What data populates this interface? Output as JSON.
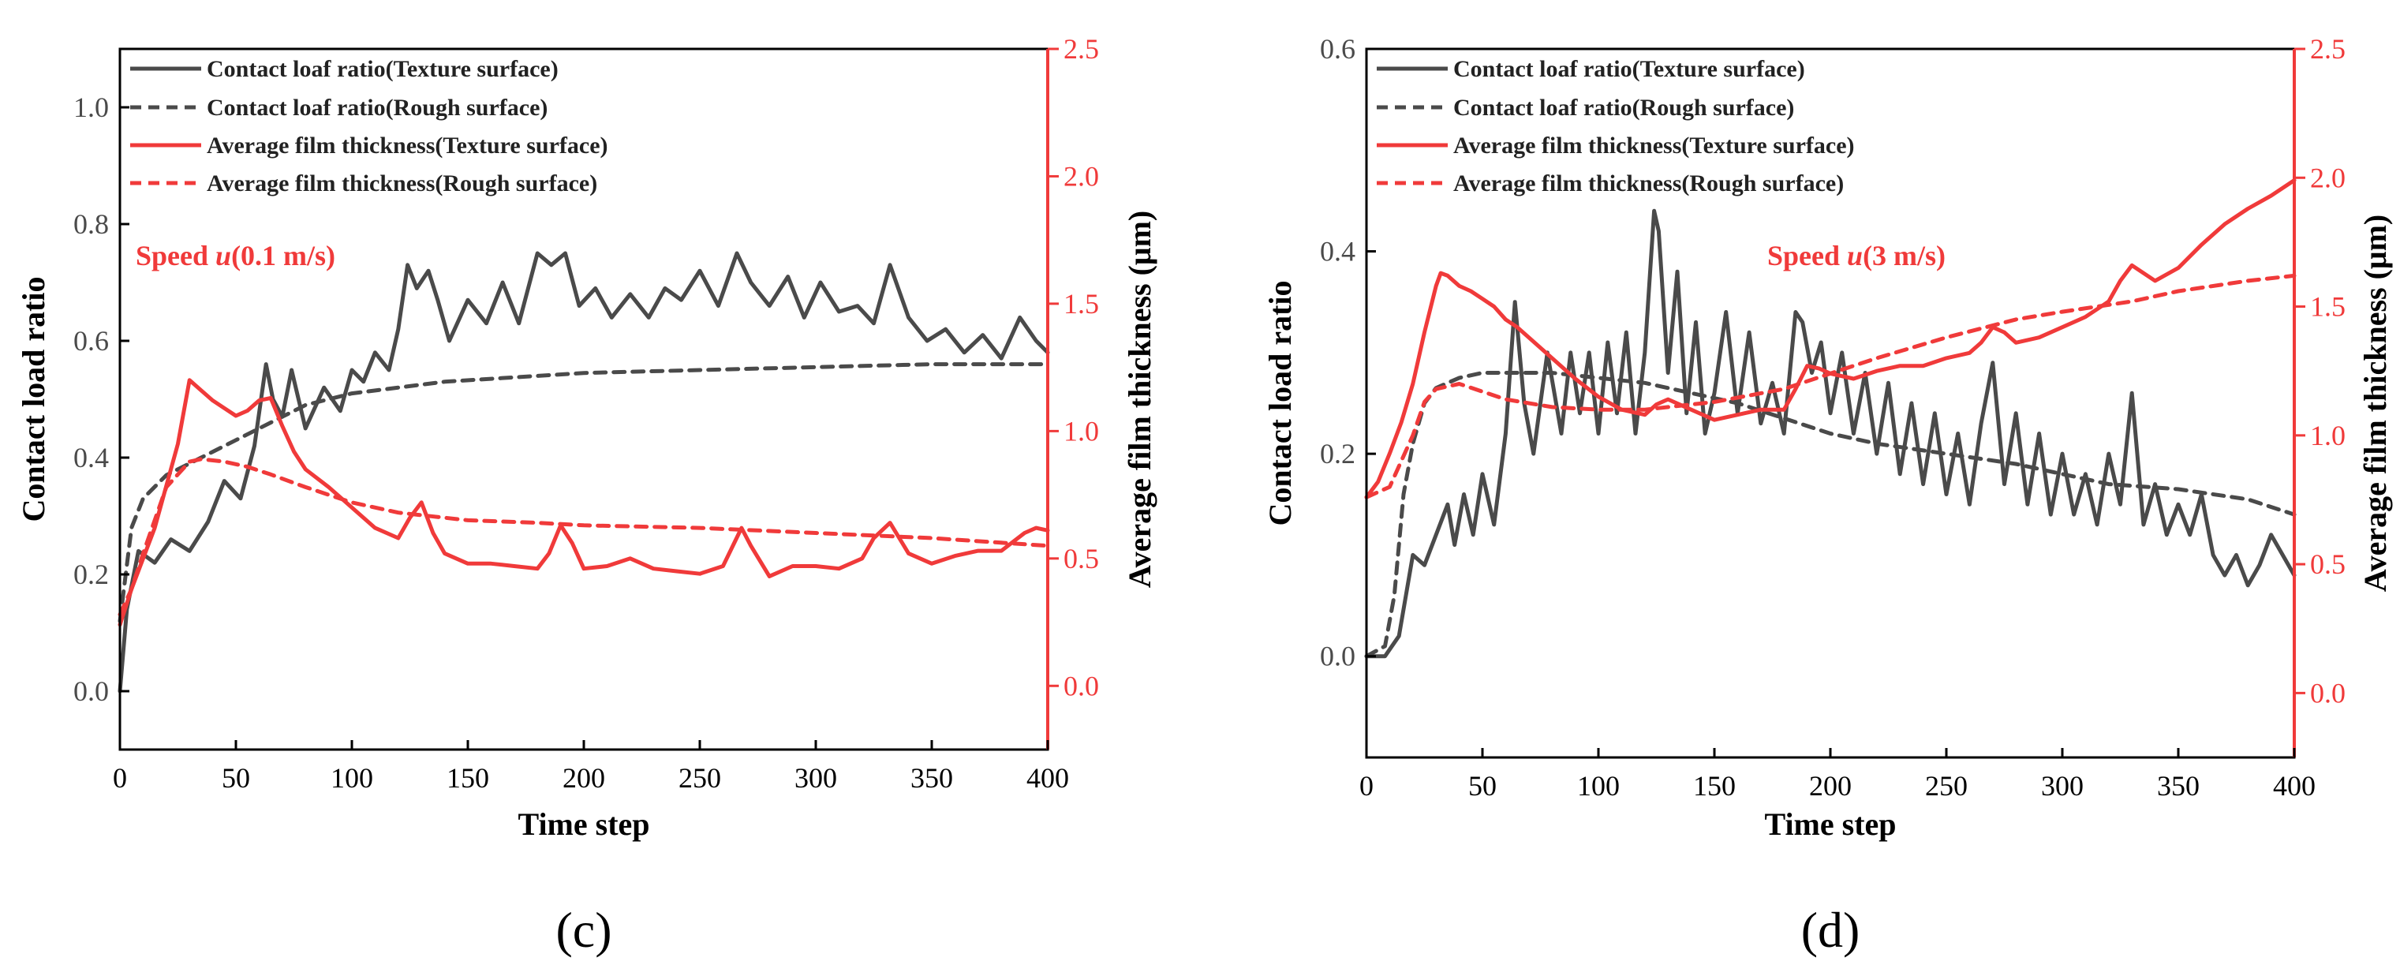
{
  "colors": {
    "gray": "#4a4a4a",
    "red": "#f03a3a",
    "axis": "#000000"
  },
  "panels": [
    {
      "label": "(c)",
      "annotation": "Speed u(0.1 m/s)",
      "annotation_parts": [
        "Speed ",
        "u",
        "(0.1 m/s)"
      ],
      "xlabel": "Time step",
      "ylabel_left": "Contact load ratio",
      "ylabel_right": "Average film thickness (μm)",
      "legend": [
        "Contact loaf ratio(Texture surface)",
        "Contact loaf ratio(Rough surface)",
        "Average film thickness(Texture surface)",
        "Average film thickness(Rough surface)"
      ]
    },
    {
      "label": "(d)",
      "annotation": "Speed u(3 m/s)",
      "annotation_parts": [
        "Speed ",
        "u",
        "(3 m/s)"
      ],
      "xlabel": "Time step",
      "ylabel_left": "Contact load ratio",
      "ylabel_right": "Average film thickness (μm)",
      "legend": [
        "Contact loaf ratio(Texture surface)",
        "Contact loaf ratio(Rough surface)",
        "Average film thickness(Texture surface)",
        "Average film thickness(Rough surface)"
      ]
    }
  ],
  "chart_data": [
    {
      "type": "line",
      "title": "(c)",
      "annotation": "Speed u(0.1 m/s)",
      "xlabel": "Time step",
      "ylabel": "Contact load ratio",
      "ylabel_right": "Average film thickness (μm)",
      "xlim": [
        0,
        400
      ],
      "ylim": [
        -0.1,
        1.1
      ],
      "ylim_right": [
        -0.25,
        2.5
      ],
      "xticks": [
        0,
        50,
        100,
        150,
        200,
        250,
        300,
        350,
        400
      ],
      "yticks": [
        0.0,
        0.2,
        0.4,
        0.6,
        0.8,
        1.0
      ],
      "yticks_right": [
        0.0,
        0.5,
        1.0,
        1.5,
        2.0,
        2.5
      ],
      "series": [
        {
          "name": "Contact loaf ratio(Texture surface)",
          "axis": "left",
          "color": "#4a4a4a",
          "dash": "solid",
          "x": [
            0,
            3,
            8,
            15,
            22,
            30,
            38,
            45,
            52,
            58,
            63,
            66,
            70,
            74,
            77,
            80,
            88,
            95,
            100,
            105,
            110,
            116,
            120,
            124,
            128,
            133,
            137,
            142,
            150,
            158,
            165,
            172,
            180,
            186,
            192,
            198,
            205,
            212,
            220,
            228,
            235,
            242,
            250,
            258,
            266,
            272,
            280,
            288,
            295,
            302,
            310,
            318,
            325,
            332,
            340,
            348,
            356,
            364,
            372,
            380,
            388,
            395,
            400
          ],
          "values": [
            0.0,
            0.14,
            0.24,
            0.22,
            0.26,
            0.24,
            0.29,
            0.36,
            0.33,
            0.42,
            0.56,
            0.5,
            0.47,
            0.55,
            0.5,
            0.45,
            0.52,
            0.48,
            0.55,
            0.53,
            0.58,
            0.55,
            0.62,
            0.73,
            0.69,
            0.72,
            0.67,
            0.6,
            0.67,
            0.63,
            0.7,
            0.63,
            0.75,
            0.73,
            0.75,
            0.66,
            0.69,
            0.64,
            0.68,
            0.64,
            0.69,
            0.67,
            0.72,
            0.66,
            0.75,
            0.7,
            0.66,
            0.71,
            0.64,
            0.7,
            0.65,
            0.66,
            0.63,
            0.73,
            0.64,
            0.6,
            0.62,
            0.58,
            0.61,
            0.57,
            0.64,
            0.6,
            0.58
          ]
        },
        {
          "name": "Contact loaf ratio(Rough surface)",
          "axis": "left",
          "color": "#4a4a4a",
          "dash": "dashed",
          "x": [
            0,
            5,
            10,
            20,
            30,
            40,
            50,
            60,
            70,
            80,
            90,
            100,
            120,
            140,
            160,
            180,
            200,
            250,
            300,
            350,
            400
          ],
          "values": [
            0.12,
            0.28,
            0.33,
            0.37,
            0.39,
            0.41,
            0.43,
            0.45,
            0.47,
            0.49,
            0.5,
            0.51,
            0.52,
            0.53,
            0.535,
            0.54,
            0.545,
            0.55,
            0.555,
            0.56,
            0.56
          ]
        },
        {
          "name": "Average film thickness(Texture surface)",
          "axis": "right",
          "color": "#f03a3a",
          "dash": "solid",
          "x": [
            0,
            5,
            15,
            25,
            30,
            35,
            40,
            45,
            50,
            55,
            60,
            65,
            70,
            75,
            80,
            90,
            100,
            110,
            120,
            125,
            130,
            135,
            140,
            150,
            160,
            170,
            180,
            185,
            190,
            195,
            200,
            210,
            220,
            230,
            240,
            250,
            260,
            268,
            272,
            280,
            290,
            300,
            310,
            320,
            325,
            332,
            340,
            350,
            360,
            370,
            380,
            390,
            395,
            400
          ],
          "values": [
            0.24,
            0.38,
            0.62,
            0.95,
            1.2,
            1.16,
            1.12,
            1.09,
            1.06,
            1.08,
            1.12,
            1.13,
            1.02,
            0.92,
            0.85,
            0.78,
            0.7,
            0.62,
            0.58,
            0.66,
            0.72,
            0.6,
            0.52,
            0.48,
            0.48,
            0.47,
            0.46,
            0.52,
            0.63,
            0.56,
            0.46,
            0.47,
            0.5,
            0.46,
            0.45,
            0.44,
            0.47,
            0.62,
            0.55,
            0.43,
            0.47,
            0.47,
            0.46,
            0.5,
            0.58,
            0.64,
            0.52,
            0.48,
            0.51,
            0.53,
            0.53,
            0.6,
            0.62,
            0.61
          ]
        },
        {
          "name": "Average film thickness(Rough surface)",
          "axis": "right",
          "color": "#f03a3a",
          "dash": "dashed",
          "x": [
            0,
            5,
            10,
            20,
            30,
            35,
            45,
            55,
            65,
            80,
            100,
            120,
            150,
            180,
            200,
            250,
            300,
            350,
            400
          ],
          "values": [
            0.28,
            0.38,
            0.52,
            0.78,
            0.88,
            0.89,
            0.88,
            0.86,
            0.83,
            0.78,
            0.72,
            0.68,
            0.65,
            0.64,
            0.63,
            0.62,
            0.6,
            0.58,
            0.55
          ]
        }
      ]
    },
    {
      "type": "line",
      "title": "(d)",
      "annotation": "Speed u(3 m/s)",
      "xlabel": "Time step",
      "ylabel": "Contact load ratio",
      "ylabel_right": "Average film thickness (μm)",
      "xlim": [
        0,
        400
      ],
      "ylim": [
        -0.1,
        0.6
      ],
      "ylim_right": [
        -0.25,
        2.5
      ],
      "xticks": [
        0,
        50,
        100,
        150,
        200,
        250,
        300,
        350,
        400
      ],
      "yticks": [
        0.0,
        0.2,
        0.4,
        0.6
      ],
      "yticks_right": [
        0.0,
        0.5,
        1.0,
        1.5,
        2.0,
        2.5
      ],
      "series": [
        {
          "name": "Contact loaf ratio(Texture surface)",
          "axis": "left",
          "color": "#4a4a4a",
          "dash": "solid",
          "x": [
            0,
            8,
            14,
            20,
            25,
            30,
            35,
            38,
            42,
            46,
            50,
            55,
            60,
            64,
            68,
            72,
            78,
            84,
            88,
            92,
            96,
            100,
            104,
            108,
            112,
            116,
            120,
            124,
            126,
            130,
            134,
            138,
            142,
            146,
            150,
            155,
            160,
            165,
            170,
            175,
            180,
            185,
            188,
            192,
            196,
            200,
            205,
            210,
            215,
            220,
            225,
            230,
            235,
            240,
            245,
            250,
            255,
            260,
            265,
            270,
            275,
            280,
            285,
            290,
            295,
            300,
            305,
            310,
            315,
            320,
            325,
            330,
            335,
            340,
            345,
            350,
            355,
            360,
            365,
            370,
            375,
            380,
            385,
            390,
            395,
            400
          ],
          "values": [
            0.0,
            0.0,
            0.02,
            0.1,
            0.09,
            0.12,
            0.15,
            0.11,
            0.16,
            0.12,
            0.18,
            0.13,
            0.22,
            0.35,
            0.25,
            0.2,
            0.3,
            0.22,
            0.3,
            0.24,
            0.3,
            0.22,
            0.31,
            0.24,
            0.32,
            0.22,
            0.3,
            0.44,
            0.42,
            0.28,
            0.38,
            0.24,
            0.33,
            0.22,
            0.26,
            0.34,
            0.24,
            0.32,
            0.23,
            0.27,
            0.22,
            0.34,
            0.33,
            0.28,
            0.31,
            0.24,
            0.3,
            0.22,
            0.28,
            0.2,
            0.27,
            0.18,
            0.25,
            0.17,
            0.24,
            0.16,
            0.22,
            0.15,
            0.23,
            0.29,
            0.17,
            0.24,
            0.15,
            0.22,
            0.14,
            0.2,
            0.14,
            0.18,
            0.13,
            0.2,
            0.15,
            0.26,
            0.13,
            0.17,
            0.12,
            0.15,
            0.12,
            0.16,
            0.1,
            0.08,
            0.1,
            0.07,
            0.09,
            0.12,
            0.1,
            0.08
          ]
        },
        {
          "name": "Contact loaf ratio(Rough surface)",
          "axis": "left",
          "color": "#4a4a4a",
          "dash": "dashed",
          "x": [
            0,
            8,
            12,
            16,
            20,
            25,
            30,
            35,
            40,
            50,
            60,
            80,
            100,
            120,
            140,
            160,
            180,
            200,
            220,
            250,
            280,
            300,
            320,
            350,
            380,
            400
          ],
          "values": [
            0.0,
            0.01,
            0.06,
            0.16,
            0.21,
            0.25,
            0.265,
            0.27,
            0.275,
            0.28,
            0.28,
            0.28,
            0.275,
            0.27,
            0.26,
            0.25,
            0.235,
            0.22,
            0.21,
            0.2,
            0.19,
            0.18,
            0.17,
            0.165,
            0.155,
            0.14
          ]
        },
        {
          "name": "Average film thickness(Texture surface)",
          "axis": "right",
          "color": "#f03a3a",
          "dash": "solid",
          "x": [
            0,
            5,
            10,
            15,
            20,
            25,
            30,
            32,
            35,
            40,
            45,
            50,
            55,
            60,
            65,
            70,
            80,
            90,
            100,
            110,
            120,
            125,
            130,
            140,
            150,
            160,
            170,
            180,
            185,
            190,
            195,
            200,
            210,
            220,
            230,
            240,
            250,
            260,
            265,
            270,
            275,
            280,
            290,
            300,
            310,
            320,
            325,
            330,
            340,
            350,
            360,
            370,
            380,
            390,
            400
          ],
          "values": [
            0.76,
            0.82,
            0.93,
            1.05,
            1.2,
            1.4,
            1.58,
            1.63,
            1.62,
            1.58,
            1.56,
            1.53,
            1.5,
            1.45,
            1.42,
            1.38,
            1.3,
            1.22,
            1.15,
            1.1,
            1.08,
            1.12,
            1.14,
            1.1,
            1.06,
            1.08,
            1.1,
            1.1,
            1.18,
            1.27,
            1.26,
            1.24,
            1.22,
            1.25,
            1.27,
            1.27,
            1.3,
            1.32,
            1.36,
            1.42,
            1.4,
            1.36,
            1.38,
            1.42,
            1.46,
            1.52,
            1.6,
            1.66,
            1.6,
            1.65,
            1.74,
            1.82,
            1.88,
            1.93,
            1.99
          ]
        },
        {
          "name": "Average film thickness(Rough surface)",
          "axis": "right",
          "color": "#f03a3a",
          "dash": "dashed",
          "x": [
            0,
            10,
            20,
            25,
            30,
            40,
            50,
            60,
            80,
            100,
            120,
            150,
            180,
            200,
            220,
            250,
            280,
            300,
            330,
            350,
            380,
            400
          ],
          "values": [
            0.76,
            0.8,
            1.0,
            1.13,
            1.18,
            1.2,
            1.17,
            1.14,
            1.11,
            1.1,
            1.1,
            1.13,
            1.18,
            1.24,
            1.3,
            1.38,
            1.45,
            1.48,
            1.52,
            1.56,
            1.6,
            1.62
          ]
        }
      ]
    }
  ]
}
